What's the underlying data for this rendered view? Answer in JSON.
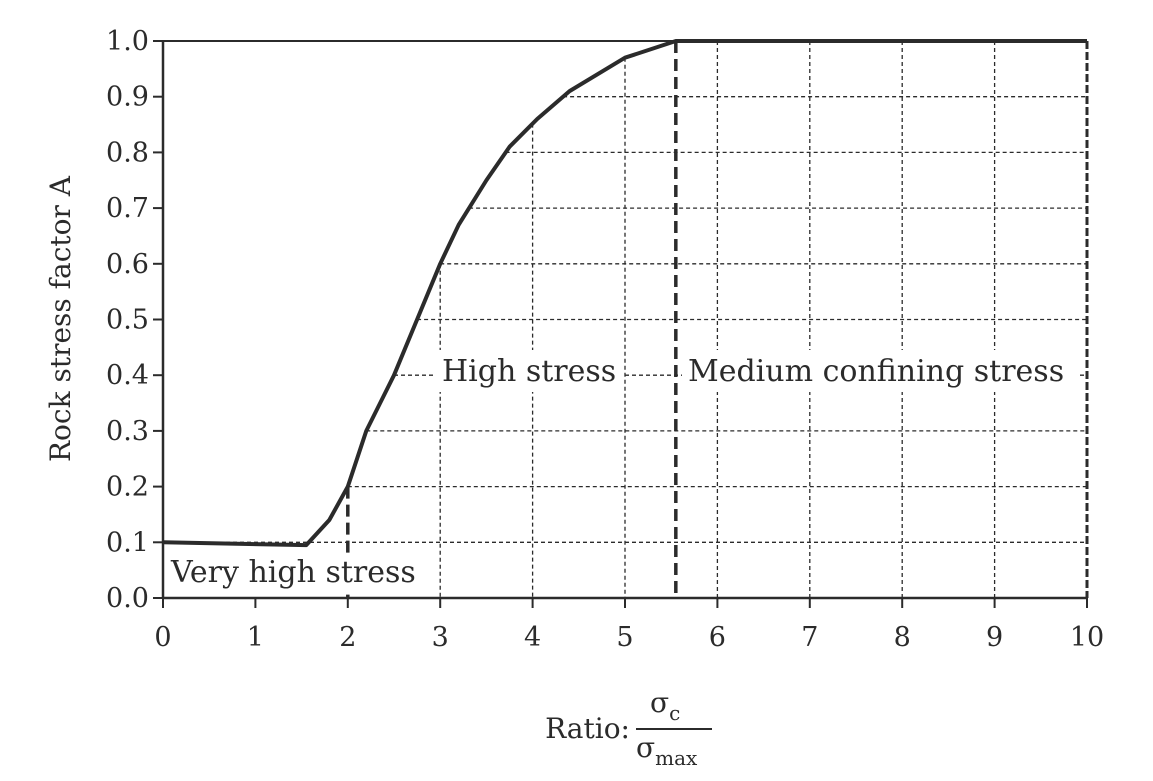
{
  "chart_data": {
    "type": "line",
    "title": "",
    "ylabel": "Rock stress factor A",
    "xlabel": {
      "prefix": "Ratio:",
      "numerator": "σ",
      "numerator_sub": "c",
      "denominator": "σ",
      "denominator_sub": "max"
    },
    "xlim": [
      0,
      10
    ],
    "ylim": [
      0,
      1.0
    ],
    "xticks": [
      0,
      1,
      2,
      3,
      4,
      5,
      6,
      7,
      8,
      9,
      10
    ],
    "xtick_labels": [
      "0",
      "1",
      "2",
      "3",
      "4",
      "5",
      "6",
      "7",
      "8",
      "9",
      "10"
    ],
    "yticks": [
      0,
      0.1,
      0.2,
      0.3,
      0.4,
      0.5,
      0.6,
      0.7,
      0.8,
      0.9,
      1.0
    ],
    "ytick_labels": [
      "0.0",
      "0.1",
      "0.2",
      "0.3",
      "0.4",
      "0.5",
      "0.6",
      "0.7",
      "0.8",
      "0.9",
      "1.0"
    ],
    "grid": "dashed guide lines",
    "legend": "none",
    "series": [
      {
        "x": [
          0,
          1.55,
          1.8,
          2.0,
          2.2,
          2.5,
          2.75,
          3.0,
          3.2,
          3.5,
          3.75,
          4.05,
          4.4,
          5.0,
          5.55,
          10
        ],
        "y": [
          0.1,
          0.095,
          0.14,
          0.2,
          0.3,
          0.4,
          0.5,
          0.6,
          0.67,
          0.75,
          0.81,
          0.86,
          0.91,
          0.97,
          1.0,
          1.0
        ]
      }
    ],
    "boundaries": [
      2.0,
      5.55
    ],
    "regions": [
      "Very high stress",
      "High stress",
      "Medium confining stress"
    ],
    "colors": {
      "line": "#2b2b2b",
      "guide": "#2b2b2b"
    }
  }
}
